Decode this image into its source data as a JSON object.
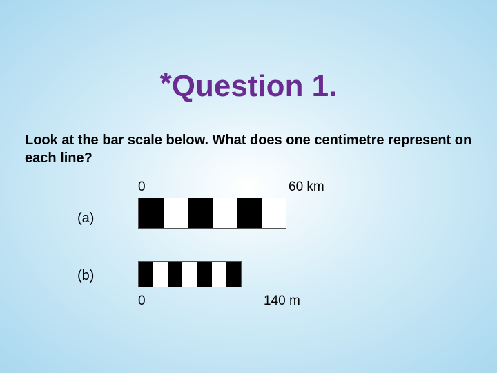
{
  "title": {
    "asterisk": "*",
    "text": "Question 1."
  },
  "prompt": "Look at the bar scale below. What does one centimetre represent on each line?",
  "scaleA": {
    "label": "(a)",
    "startLabel": "0",
    "endLabel": "60 km",
    "segments": [
      "black",
      "white",
      "black",
      "white",
      "black",
      "white"
    ],
    "colors": {
      "black": "#000000",
      "white": "#ffffff"
    }
  },
  "scaleB": {
    "label": "(b)",
    "startLabel": "0",
    "endLabel": "140 m",
    "segments": [
      "black",
      "white",
      "black",
      "white",
      "black",
      "white",
      "black"
    ],
    "colors": {
      "black": "#000000",
      "white": "#ffffff"
    }
  },
  "styling": {
    "background_gradient": {
      "center": "#ffffff",
      "mid": "#d7eef8",
      "edge": "#a9d8ef"
    },
    "title_color": "#6a2c91",
    "title_fontsize": 44,
    "prompt_fontsize": 20,
    "label_fontsize": 20,
    "scale_label_fontsize": 19,
    "scale_border_color": "#555555"
  }
}
